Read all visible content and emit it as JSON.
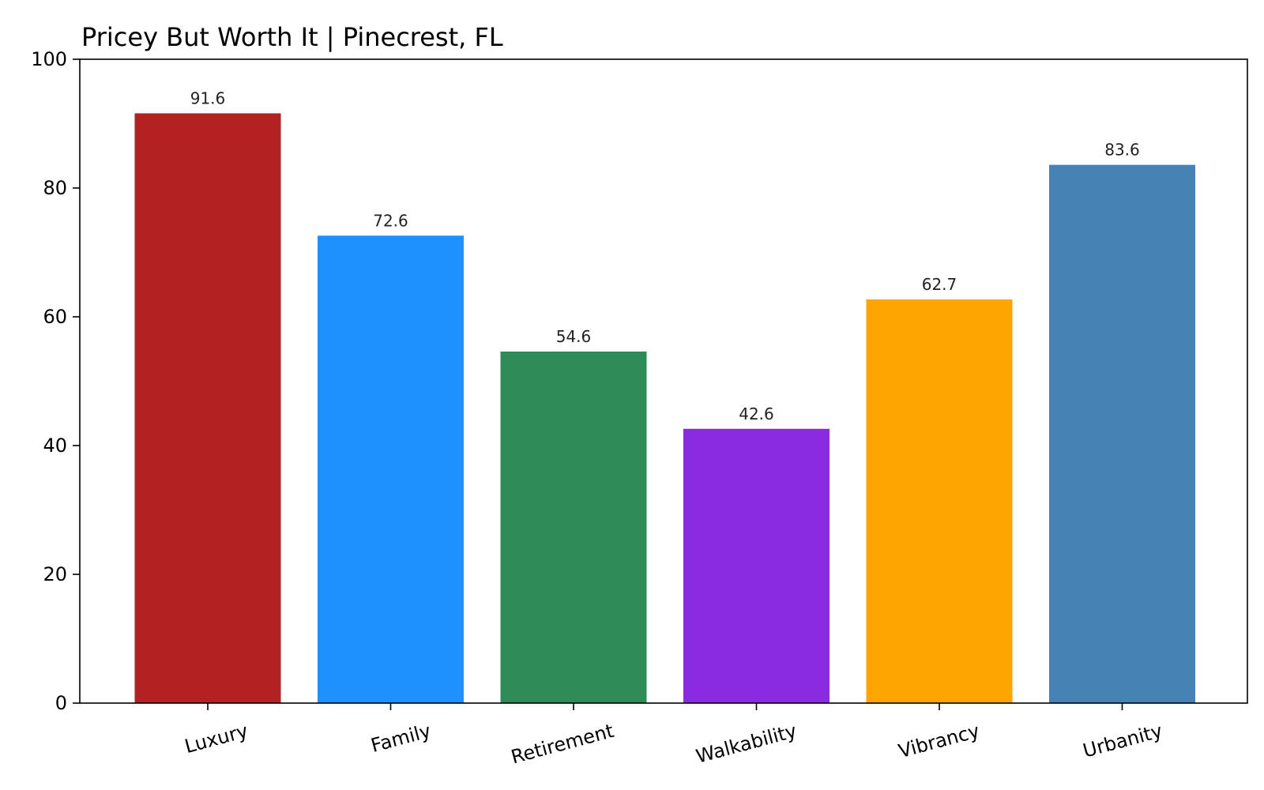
{
  "chart_data": {
    "type": "bar",
    "title": "Pricey But Worth It | Pinecrest, FL",
    "xlabel": "",
    "ylabel": "",
    "categories": [
      "Luxury",
      "Family",
      "Retirement",
      "Walkability",
      "Vibrancy",
      "Urbanity"
    ],
    "values": [
      91.6,
      72.6,
      54.6,
      42.6,
      62.7,
      83.6
    ],
    "value_labels": [
      "91.6",
      "72.6",
      "54.6",
      "42.6",
      "62.7",
      "83.6"
    ],
    "colors": [
      "#b22222",
      "#1e90ff",
      "#2e8b57",
      "#8a2be2",
      "#ffa500",
      "#4682b4"
    ],
    "ylim": [
      0,
      100
    ],
    "yticks": [
      0,
      20,
      40,
      60,
      80,
      100
    ],
    "ytick_labels": [
      "0",
      "20",
      "40",
      "60",
      "80",
      "100"
    ],
    "grid": false,
    "legend": "none"
  }
}
